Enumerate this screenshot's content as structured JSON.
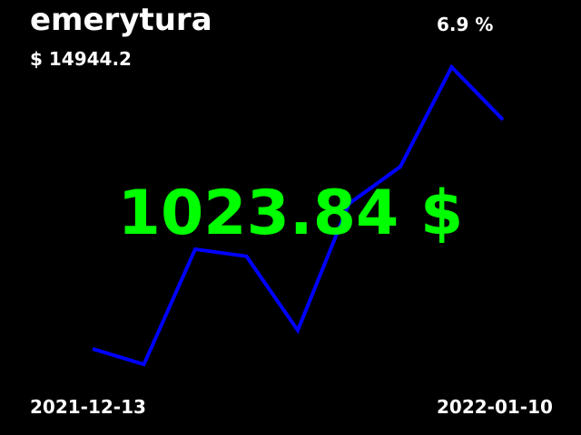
{
  "header": {
    "title": "emerytura",
    "total": "$ 14944.2",
    "change_percent": "6.9 %"
  },
  "main": {
    "current_value": "1023.84 $"
  },
  "footer": {
    "start_date": "2021-12-13",
    "end_date": "2022-01-10"
  },
  "colors": {
    "background": "#000000",
    "text": "#ffffff",
    "line": "#0000ff",
    "value": "#00ff00"
  },
  "chart_data": {
    "type": "line",
    "x": [
      1,
      2,
      3,
      4,
      5,
      6,
      7,
      8,
      9
    ],
    "series": [
      {
        "values": [
          16,
          5,
          86,
          81,
          29,
          118,
          144,
          214,
          177
        ]
      }
    ],
    "ylim": [
      0,
      214
    ],
    "grid": false,
    "legend": "none"
  }
}
